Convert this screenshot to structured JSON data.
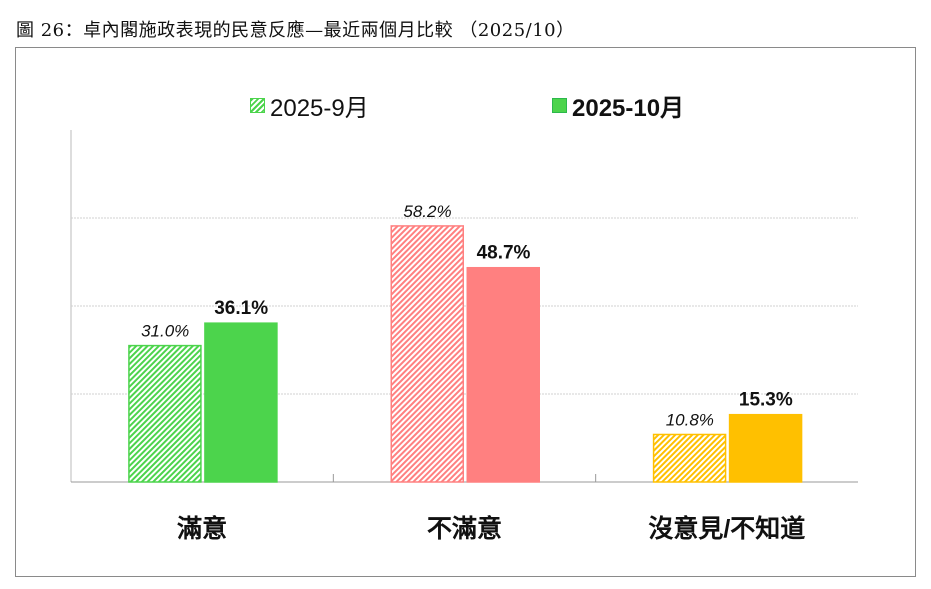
{
  "title": "圖 26：卓內閣施政表現的民意反應—最近兩個月比較 （2025/10）",
  "chart_data": {
    "type": "bar",
    "title": "卓內閣施政表現的民意反應—最近兩個月比較 （2025/10）",
    "categories": [
      "滿意",
      "不滿意",
      "沒意見/不知道"
    ],
    "series": [
      {
        "name": "2025-9月",
        "values": [
          31.0,
          58.2,
          10.8
        ],
        "labels": [
          "31.0%",
          "58.2%",
          "10.8%"
        ],
        "style": "hatched"
      },
      {
        "name": "2025-10月",
        "values": [
          36.1,
          48.7,
          15.3
        ],
        "labels": [
          "36.1%",
          "48.7%",
          "15.3%"
        ],
        "style": "solid"
      }
    ],
    "category_colors": [
      "#4cd44c",
      "#ff8080",
      "#ffc000"
    ],
    "ylim": [
      0,
      80
    ],
    "gridlines": [
      20,
      40,
      60
    ],
    "grid": true,
    "legend_position": "top-center",
    "xlabel": "",
    "ylabel": ""
  }
}
